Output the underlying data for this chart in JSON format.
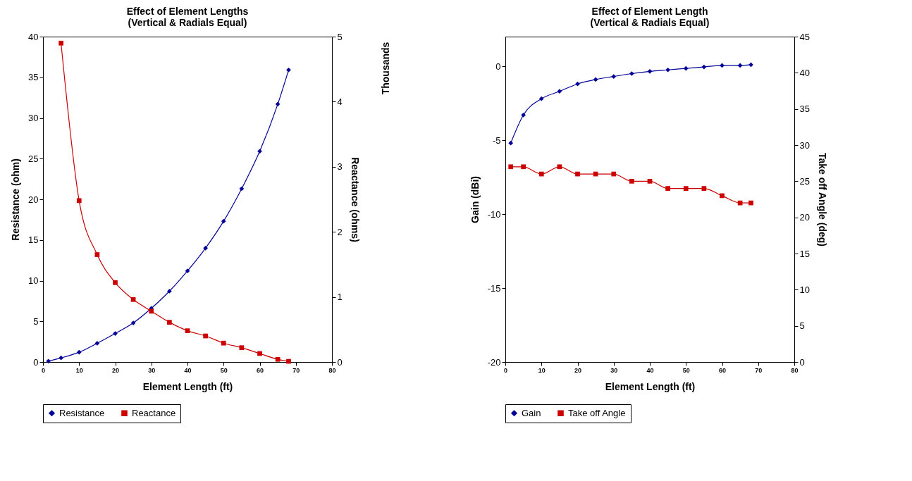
{
  "chart_data": [
    {
      "type": "line",
      "title": "Effect of Element Lengths",
      "subtitle": "(Vertical & Radials Equal)",
      "xlabel": "Element Length (ft)",
      "ylabel": "Resistance (ohm)",
      "y2label": "Reactance (ohms)",
      "annotations": [
        "Thousands"
      ],
      "xlim": [
        0,
        80
      ],
      "xticks": [
        0,
        10,
        20,
        30,
        40,
        50,
        60,
        70,
        80
      ],
      "ylim": [
        0,
        40
      ],
      "yticks": [
        0,
        5,
        10,
        15,
        20,
        25,
        30,
        35,
        40
      ],
      "y2lim": [
        0,
        5
      ],
      "y2ticks": [
        0,
        1,
        2,
        3,
        4,
        5
      ],
      "legend": "bottom",
      "series": [
        {
          "name": "Resistance",
          "color": "#000099",
          "marker": "diamond",
          "x": [
            1.5,
            5,
            10,
            15,
            20,
            25,
            30,
            35,
            40,
            45,
            50,
            55,
            60,
            65,
            68
          ],
          "values": [
            0.1,
            0.5,
            1.2,
            2.3,
            3.5,
            4.8,
            6.6,
            8.7,
            11.2,
            14,
            17.3,
            21.3,
            25.9,
            31.7,
            35.9
          ]
        },
        {
          "name": "Reactance",
          "color": "#cc0000",
          "marker": "square",
          "axis": "y2",
          "x": [
            5,
            10,
            15,
            20,
            25,
            30,
            35,
            40,
            45,
            50,
            55,
            60,
            65,
            68
          ],
          "values": [
            4.9,
            2.48,
            1.65,
            1.22,
            0.96,
            0.78,
            0.61,
            0.48,
            0.4,
            0.29,
            0.22,
            0.13,
            0.04,
            0.01
          ]
        }
      ]
    },
    {
      "type": "line",
      "title": "Effect of Element Length",
      "subtitle": "(Vertical & Radials Equal)",
      "xlabel": "Element Length (ft)",
      "ylabel": "Gain (dBi)",
      "y2label": "Take off Angle (deg)",
      "xlim": [
        0,
        80
      ],
      "xticks": [
        0,
        10,
        20,
        30,
        40,
        50,
        60,
        70,
        80
      ],
      "ylim": [
        -20,
        2
      ],
      "yticks": [
        -20,
        -15,
        -10,
        -5,
        0
      ],
      "y2lim": [
        0,
        45
      ],
      "y2ticks": [
        0,
        5,
        10,
        15,
        20,
        25,
        30,
        35,
        40,
        45
      ],
      "legend": "bottom",
      "series": [
        {
          "name": "Gain",
          "color": "#000099",
          "marker": "diamond",
          "x": [
            1.5,
            5,
            10,
            15,
            20,
            25,
            30,
            35,
            40,
            45,
            50,
            55,
            60,
            65,
            68
          ],
          "values": [
            -5.2,
            -3.3,
            -2.2,
            -1.7,
            -1.2,
            -0.9,
            -0.7,
            -0.5,
            -0.35,
            -0.25,
            -0.15,
            -0.05,
            0.05,
            0.05,
            0.1
          ]
        },
        {
          "name": "Take off Angle",
          "color": "#cc0000",
          "marker": "square",
          "axis": "y2",
          "x": [
            1.5,
            5,
            10,
            15,
            20,
            25,
            30,
            35,
            40,
            45,
            50,
            55,
            60,
            65,
            68
          ],
          "values": [
            27,
            27,
            26,
            27,
            26,
            26,
            26,
            25,
            25,
            24,
            24,
            24,
            23,
            22,
            22
          ]
        }
      ]
    }
  ]
}
